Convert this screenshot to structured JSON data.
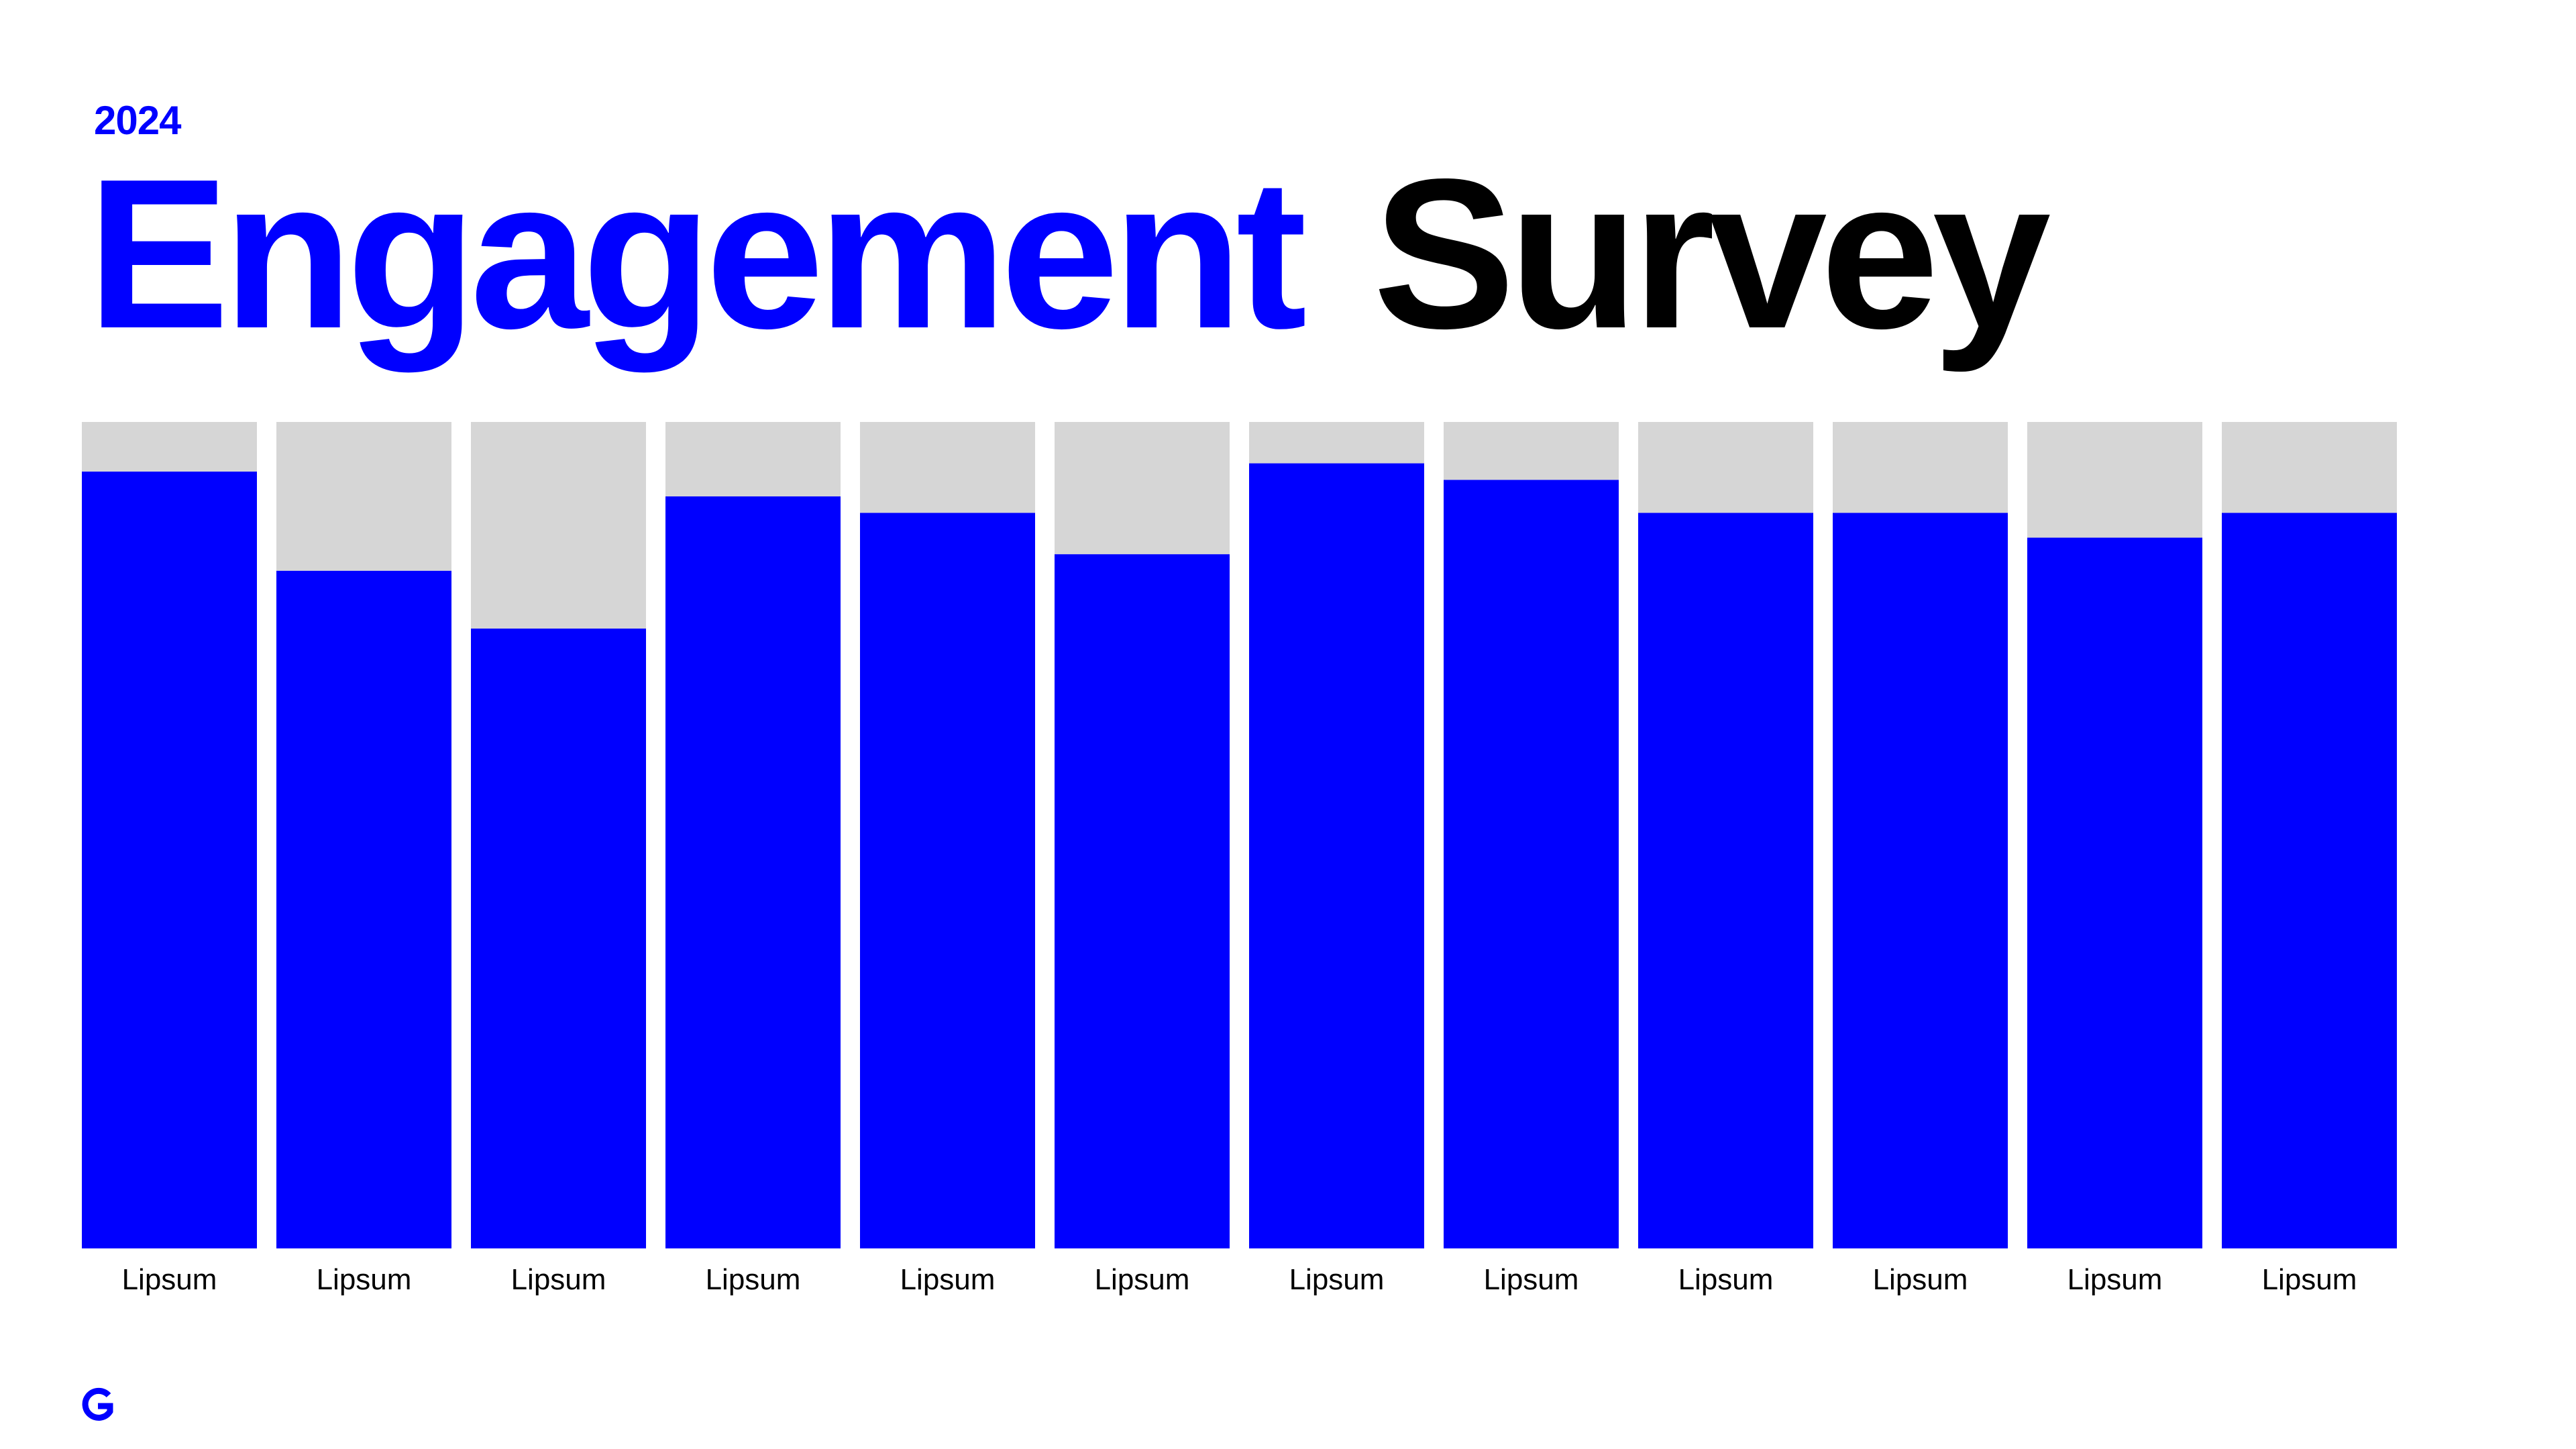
{
  "chart_data": {
    "type": "stacked_bar",
    "kicker": "2024",
    "title_parts": [
      {
        "text": "Engagement",
        "color": "#0000ff"
      },
      {
        "text": "Survey",
        "color": "#000000"
      }
    ],
    "categories": [
      "Lipsum",
      "Lipsum",
      "Lipsum",
      "Lipsum",
      "Lipsum",
      "Lipsum",
      "Lipsum",
      "Lipsum",
      "Lipsum",
      "Lipsum",
      "Lipsum",
      "Lipsum"
    ],
    "series": [
      {
        "color": "#0000ff",
        "values": [
          94,
          82,
          75,
          91,
          89,
          84,
          95,
          93,
          89,
          89,
          86,
          89
        ]
      },
      {
        "color": "#d6d6d6",
        "values": [
          6,
          18,
          25,
          9,
          11,
          16,
          5,
          7,
          11,
          11,
          14,
          11
        ]
      }
    ],
    "ylim": [
      0,
      100
    ]
  }
}
